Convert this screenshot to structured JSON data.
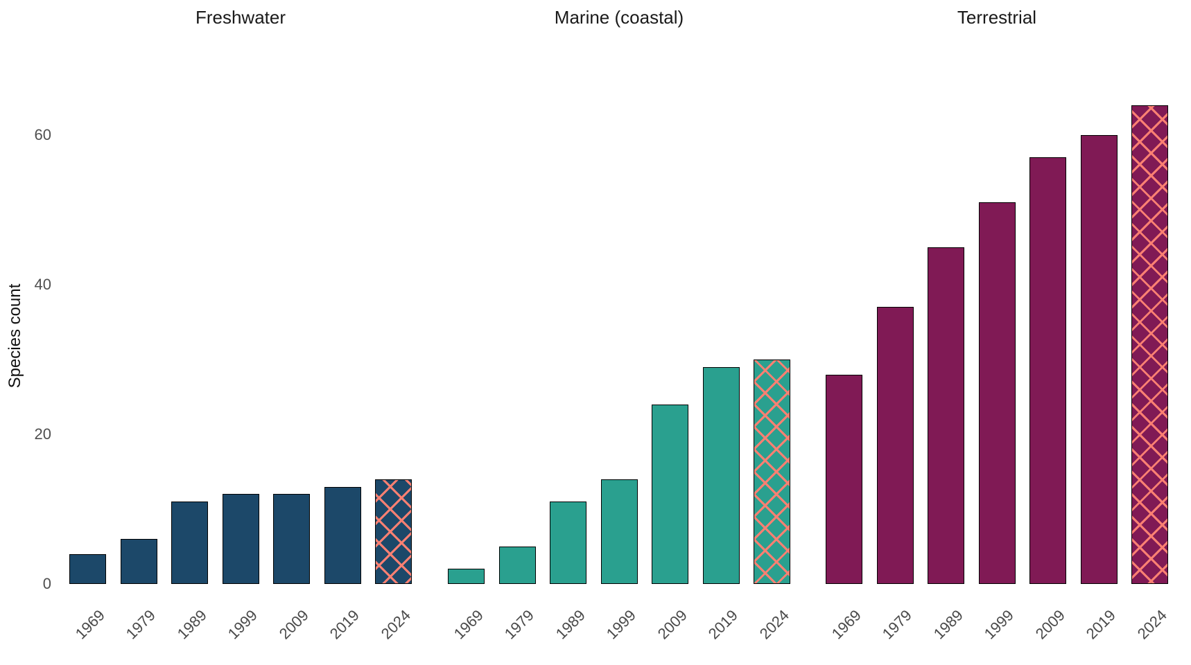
{
  "chart_data": {
    "type": "bar",
    "title": "",
    "xlabel": "",
    "ylabel": "Species count",
    "yticks": [
      0,
      20,
      40,
      60
    ],
    "ylim": [
      0,
      67
    ],
    "grid": false,
    "legend": "none",
    "background_color": "#ffffff",
    "bar_edge_color": "#000000",
    "tick_label_color": "#4a4a4a",
    "facet_title_color": "#1a1a1a",
    "x_tick_rotation_deg": 45,
    "categories": [
      "1969",
      "1979",
      "1989",
      "1999",
      "2009",
      "2019",
      "2024"
    ],
    "hatch": {
      "applies_to_category": "2024",
      "pattern": "diagonal-crosshatch",
      "color": "#fa8072"
    },
    "facets": [
      {
        "title": "Freshwater",
        "bar_color": "#1c4869",
        "values": [
          4,
          6,
          11,
          12,
          12,
          13,
          14
        ]
      },
      {
        "title": "Marine (coastal)",
        "bar_color": "#2aa08f",
        "values": [
          2,
          5,
          11,
          14,
          24,
          29,
          30
        ]
      },
      {
        "title": "Terrestrial",
        "bar_color": "#801a55",
        "values": [
          28,
          37,
          45,
          51,
          57,
          60,
          64
        ]
      }
    ]
  }
}
